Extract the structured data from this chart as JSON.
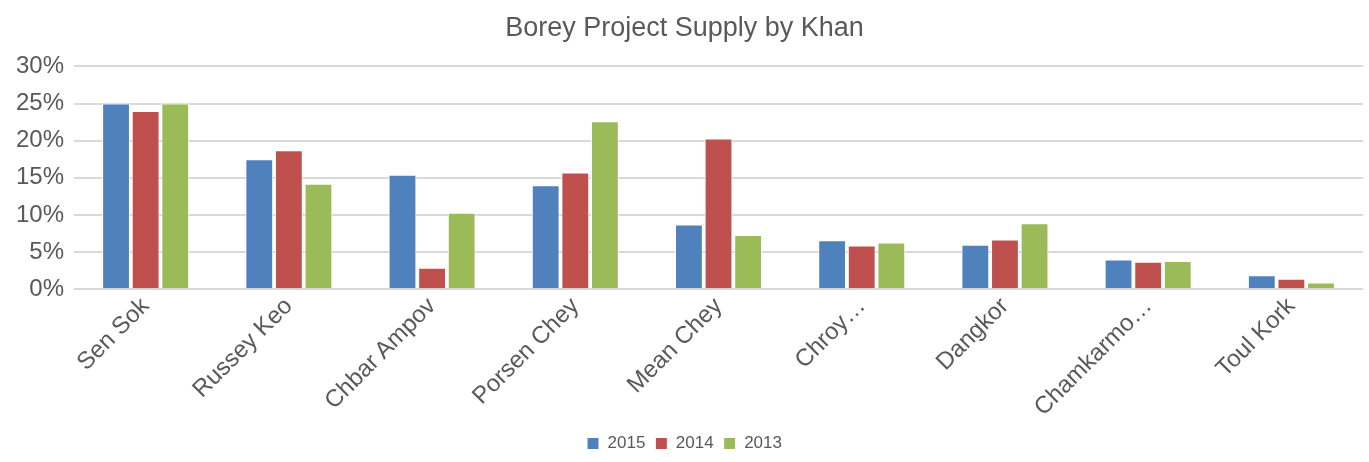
{
  "chart_data": {
    "type": "bar",
    "title": "Borey Project Supply by Khan",
    "categories": [
      "Sen Sok",
      "Russey Keo",
      "Chbar Ampov",
      "Porsen Chey",
      "Mean Chey",
      "Chroy…",
      "Dangkor",
      "Chamkarmo…",
      "Toul Kork"
    ],
    "series": [
      {
        "name": "2015",
        "color": "#4f81bd",
        "values": [
          25,
          17.5,
          15.4,
          14,
          8.7,
          6.6,
          6,
          4,
          1.9
        ]
      },
      {
        "name": "2014",
        "color": "#c0504d",
        "values": [
          24,
          18.7,
          2.9,
          15.7,
          20.3,
          5.9,
          6.7,
          3.7,
          1.4
        ]
      },
      {
        "name": "2013",
        "color": "#9bbb59",
        "values": [
          25,
          14.2,
          10.3,
          22.6,
          7.3,
          6.3,
          8.9,
          3.8,
          0.9
        ]
      }
    ],
    "ylim": [
      0,
      30
    ],
    "yticks": [
      {
        "value": 0,
        "label": "0%"
      },
      {
        "value": 5,
        "label": "5%"
      },
      {
        "value": 10,
        "label": "10%"
      },
      {
        "value": 15,
        "label": "15%"
      },
      {
        "value": 20,
        "label": "20%"
      },
      {
        "value": 25,
        "label": "25%"
      },
      {
        "value": 30,
        "label": "30%"
      }
    ],
    "grid": "y",
    "legend": "bottom"
  }
}
